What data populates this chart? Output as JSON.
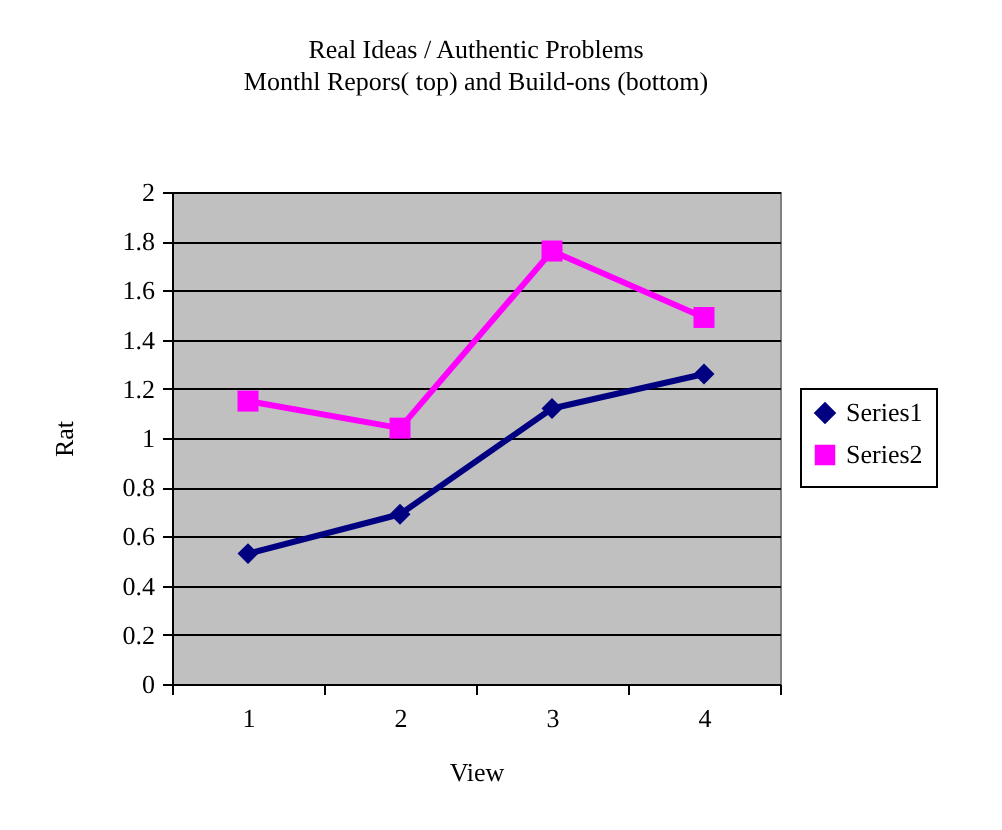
{
  "chart_data": {
    "type": "line",
    "title": "Real Ideas / Authentic Problems",
    "subtitle": "Monthl Repors( top) and Build-ons (bottom)",
    "xlabel": "View",
    "ylabel": "Rat",
    "categories": [
      "1",
      "2",
      "3",
      "4"
    ],
    "series": [
      {
        "name": "Series1",
        "color": "#000080",
        "marker": "diamond",
        "values": [
          0.53,
          0.69,
          1.12,
          1.26
        ]
      },
      {
        "name": "Series2",
        "color": "#ff00ff",
        "marker": "square",
        "values": [
          1.15,
          1.04,
          1.76,
          1.49
        ]
      }
    ],
    "ylim": [
      0,
      2
    ],
    "yticks": [
      0,
      0.2,
      0.4,
      0.6,
      0.8,
      1,
      1.2,
      1.4,
      1.6,
      1.8,
      2
    ],
    "grid": "y",
    "legend": "right",
    "line_style": "solid"
  }
}
